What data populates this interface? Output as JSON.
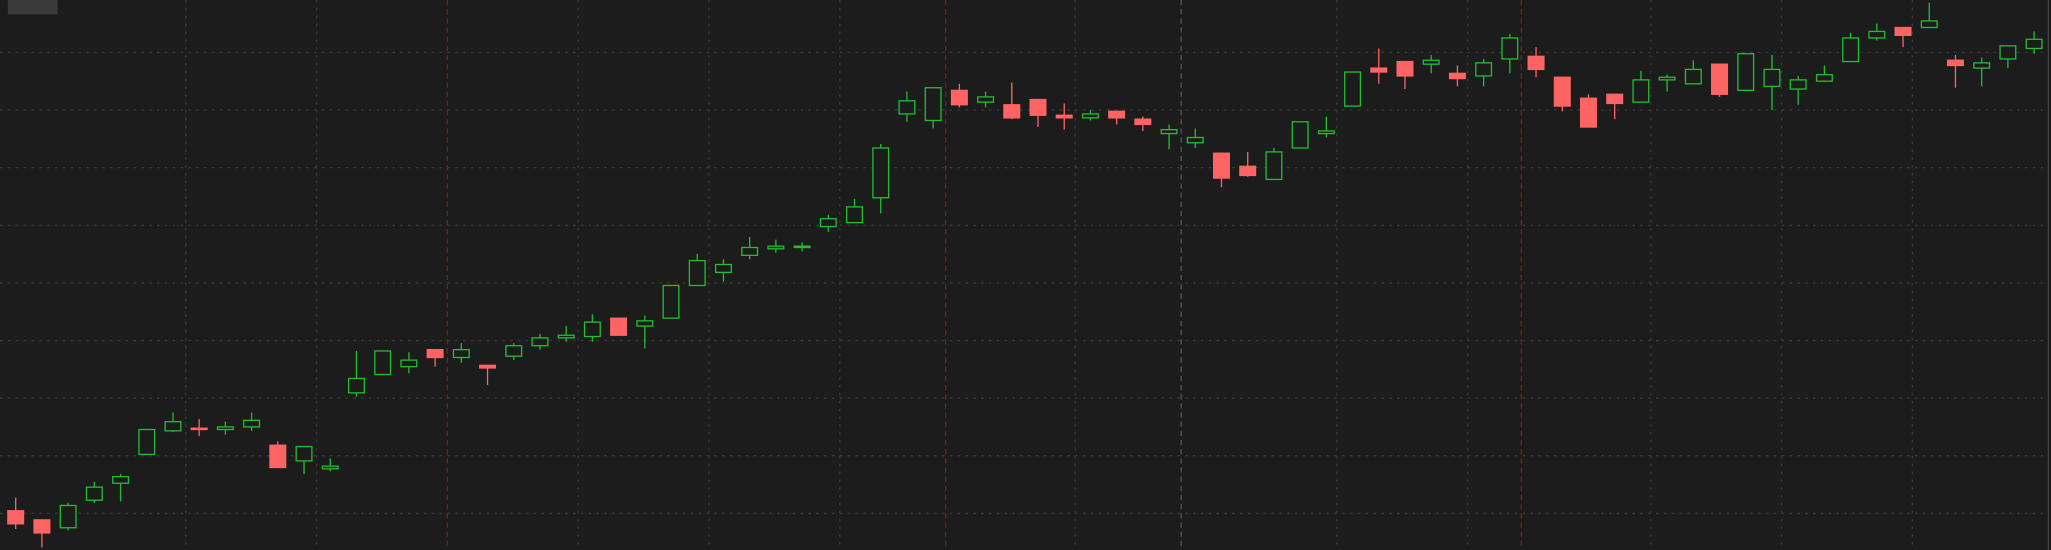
{
  "chart_data": {
    "type": "candlestick",
    "open": [
      30,
      23,
      17,
      38,
      51,
      73,
      91,
      93,
      92,
      94,
      80,
      68,
      62,
      120,
      134,
      140,
      153,
      147,
      141,
      148,
      156,
      162,
      163,
      177,
      171,
      177,
      202,
      212,
      225,
      230,
      231,
      247,
      250,
      269,
      333,
      328,
      351,
      342,
      340,
      344,
      332,
      330,
      335,
      329,
      318,
      311,
      303,
      293,
      283,
      307,
      318,
      339,
      368,
      373,
      371,
      364,
      362,
      375,
      377,
      361,
      345,
      348,
      342,
      359,
      356,
      371,
      351,
      354,
      352,
      358,
      373,
      391,
      399,
      399,
      374,
      368,
      375,
      383
    ],
    "high": [
      40,
      23,
      36,
      52,
      58,
      92,
      105,
      100,
      98,
      105,
      83,
      79,
      70,
      152,
      152,
      151,
      153,
      158,
      141,
      158,
      165,
      171,
      180,
      177,
      179,
      202,
      226,
      222,
      239,
      237,
      235,
      256,
      268,
      310,
      350,
      353,
      356,
      350,
      357,
      344,
      341,
      336,
      335,
      331,
      325,
      322,
      303,
      304,
      307,
      327,
      331,
      365,
      383,
      373,
      378,
      370,
      375,
      394,
      384,
      361,
      348,
      348,
      366,
      363,
      374,
      371,
      379,
      378,
      362,
      370,
      395,
      402,
      399,
      418,
      378,
      376,
      385,
      396
    ],
    "low": [
      16,
      2,
      15,
      36,
      37,
      73,
      90,
      87,
      88,
      91,
      63,
      58,
      60,
      117,
      134,
      135,
      140,
      143,
      126,
      145,
      153,
      159,
      159,
      164,
      154,
      177,
      202,
      205,
      222,
      227,
      228,
      243,
      250,
      257,
      327,
      322,
      338,
      338,
      329,
      323,
      321,
      328,
      325,
      320,
      306,
      307,
      277,
      285,
      283,
      307,
      315,
      339,
      356,
      352,
      364,
      354,
      354,
      364,
      361,
      335,
      323,
      329,
      342,
      350,
      356,
      346,
      351,
      336,
      340,
      358,
      373,
      389,
      384,
      399,
      353,
      354,
      368,
      379
    ],
    "close": [
      20,
      13,
      34,
      48,
      56,
      92,
      98,
      92,
      94,
      99,
      63,
      79,
      64,
      131,
      152,
      145,
      147,
      153,
      139,
      156,
      162,
      164,
      174,
      164,
      175,
      202,
      221,
      218,
      231,
      232,
      232,
      253,
      262,
      307,
      343,
      353,
      340,
      346,
      330,
      332,
      330,
      333,
      330,
      325,
      321,
      315,
      284,
      286,
      304,
      327,
      320,
      365,
      365,
      362,
      374,
      360,
      372,
      391,
      367,
      339,
      323,
      341,
      359,
      361,
      367,
      348,
      379,
      367,
      359,
      363,
      391,
      396,
      393,
      404,
      370,
      372,
      385,
      390
    ],
    "up_color": "#1fbf2f",
    "down_color": "#ff6464",
    "ylim": [
      0,
      420
    ],
    "yticks": [
      28,
      72,
      116,
      160,
      204,
      248,
      292,
      336,
      380
    ],
    "grid": true
  }
}
